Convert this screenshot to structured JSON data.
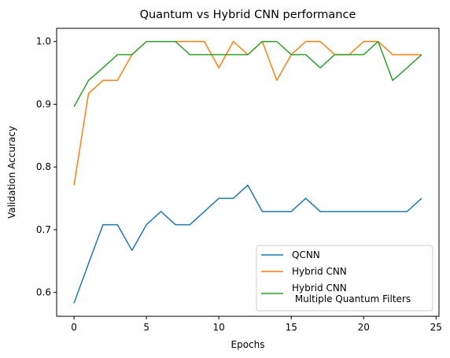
{
  "chart_data": {
    "type": "line",
    "title": "Quantum vs Hybrid CNN performance",
    "xlabel": "Epochs",
    "ylabel": "Validation Accuracy",
    "xlim": [
      -1.2,
      25.2
    ],
    "ylim": [
      0.562,
      1.021
    ],
    "xticks": [
      0,
      5,
      10,
      15,
      20,
      25
    ],
    "xtick_labels": [
      "0",
      "5",
      "10",
      "15",
      "20",
      "25"
    ],
    "yticks": [
      0.6,
      0.7,
      0.8,
      0.9,
      1.0
    ],
    "ytick_labels": [
      "0.6",
      "0.7",
      "0.8",
      "0.9",
      "1.0"
    ],
    "grid": false,
    "legend_position": "lower-right",
    "x": [
      0,
      1,
      2,
      3,
      4,
      5,
      6,
      7,
      8,
      9,
      10,
      11,
      12,
      13,
      14,
      15,
      16,
      17,
      18,
      19,
      20,
      21,
      22,
      23,
      24
    ],
    "series": [
      {
        "name": "QCNN",
        "color": "#1f77b4",
        "values": [
          0.583,
          0.646,
          0.708,
          0.708,
          0.667,
          0.708,
          0.729,
          0.708,
          0.708,
          0.729,
          0.75,
          0.75,
          0.771,
          0.729,
          0.729,
          0.729,
          0.75,
          0.729,
          0.729,
          0.729,
          0.729,
          0.729,
          0.729,
          0.729,
          0.75
        ]
      },
      {
        "name": "Hybrid CNN",
        "color": "#ff7f0e",
        "values": [
          0.771,
          0.917,
          0.938,
          0.938,
          0.979,
          1.0,
          1.0,
          1.0,
          1.0,
          1.0,
          0.958,
          1.0,
          0.979,
          1.0,
          0.938,
          0.979,
          1.0,
          1.0,
          0.979,
          0.979,
          1.0,
          1.0,
          0.979,
          0.979,
          0.979
        ]
      },
      {
        "name": "Hybrid CNN\n Multiple Quantum Filters",
        "color": "#2ca02c",
        "values": [
          0.896,
          0.938,
          0.958,
          0.979,
          0.979,
          1.0,
          1.0,
          1.0,
          0.979,
          0.979,
          0.979,
          0.979,
          0.979,
          1.0,
          1.0,
          0.979,
          0.979,
          0.958,
          0.979,
          0.979,
          0.979,
          1.0,
          0.938,
          0.958,
          0.979
        ]
      }
    ]
  }
}
